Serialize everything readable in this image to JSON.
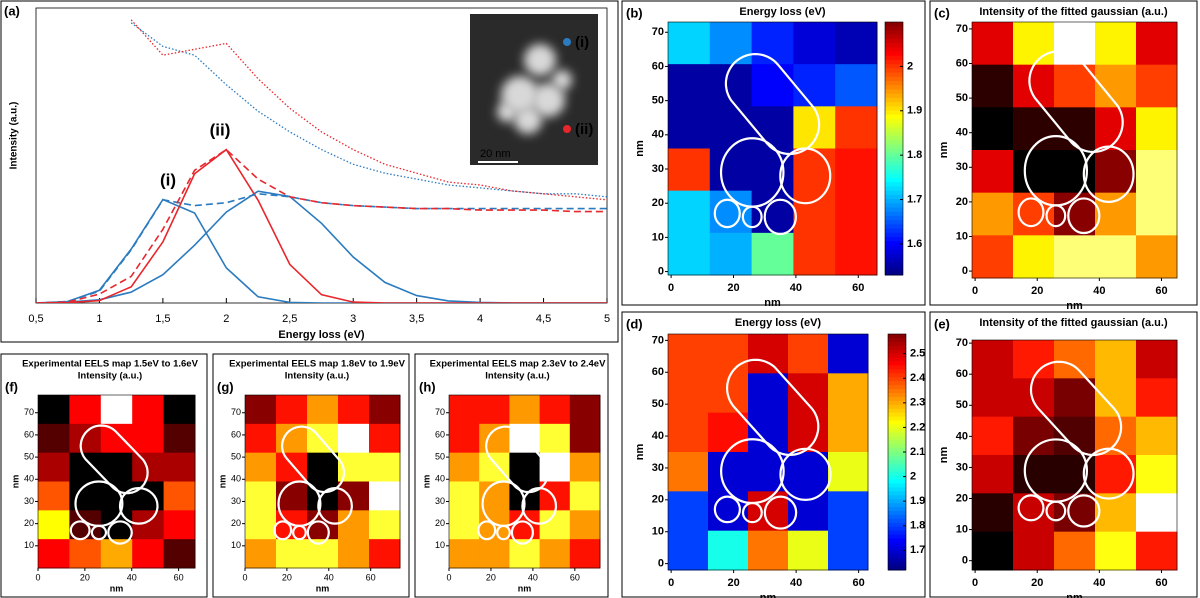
{
  "chart_data": [
    {
      "type": "line",
      "panel_label": "(a)",
      "xlabel": "Energy loss (eV)",
      "ylabel": "Intensity (a.u.)",
      "xlim": [
        0.5,
        5
      ],
      "ylim": [
        0,
        100
      ],
      "xticks": [
        {
          "value": 0.5,
          "label": "0,5"
        },
        1,
        {
          "value": 1.5,
          "label": "1,5"
        },
        2,
        {
          "value": 2.5,
          "label": "2,5"
        },
        3,
        {
          "value": 3.5,
          "label": "3,5"
        },
        4,
        {
          "value": 4.5,
          "label": "4,5"
        },
        5
      ],
      "x": [
        0.5,
        0.75,
        1,
        1.25,
        1.5,
        1.75,
        2,
        2.25,
        2.5,
        2.75,
        3,
        3.25,
        3.5,
        3.75,
        4,
        4.25,
        4.5,
        4.75,
        5
      ],
      "series": [
        {
          "color": "#2b7bbf",
          "style": "solid",
          "values": [
            0,
            0.5,
            4.3,
            18.3,
            35.1,
            30.5,
            11.9,
            2.1,
            0.2,
            0,
            0,
            0,
            0,
            0,
            0,
            0,
            0,
            0,
            0
          ]
        },
        {
          "color": "#2b7bbf",
          "style": "solid",
          "values": [
            0,
            0.3,
            1.1,
            3.7,
            9.6,
            19.6,
            30.8,
            37.9,
            36.1,
            27,
            15.6,
            7,
            2.5,
            0.7,
            0.2,
            0,
            0,
            0,
            0
          ]
        },
        {
          "color": "#e8262b",
          "style": "solid",
          "values": [
            0,
            0.1,
            0.8,
            5.5,
            20.7,
            43.8,
            52,
            34.8,
            13.1,
            2.8,
            0.3,
            0,
            0,
            0,
            0,
            0,
            0,
            0,
            0
          ]
        },
        {
          "color": "#2b7bbf",
          "style": "dashed",
          "values": [
            0,
            0.5,
            4,
            18,
            35,
            33,
            34,
            37,
            36,
            34,
            33,
            32.5,
            32,
            32,
            32,
            32,
            32,
            32,
            32
          ]
        },
        {
          "color": "#e8262b",
          "style": "dashed",
          "values": [
            0,
            0.3,
            3,
            9,
            25,
            45,
            52,
            42,
            36,
            34,
            33,
            32.5,
            32,
            32,
            31.5,
            31.5,
            31.5,
            31,
            31
          ]
        },
        {
          "color": "#2b7bbf",
          "style": "dotted",
          "values": [
            null,
            null,
            null,
            95,
            87,
            84,
            74,
            65,
            58,
            52,
            47,
            44,
            42,
            40,
            39,
            38,
            37,
            37,
            36
          ]
        },
        {
          "color": "#e8262b",
          "style": "dotted",
          "values": [
            null,
            null,
            null,
            96,
            84,
            86,
            88,
            76,
            66,
            58,
            52,
            47,
            44,
            41,
            40,
            38,
            37,
            36,
            35
          ]
        }
      ],
      "annotations": [
        {
          "text": "(i)",
          "color": "#2b7bbf"
        },
        {
          "text": "(ii)",
          "color": "#e8262b"
        }
      ],
      "inset": {
        "labels": [
          {
            "text": "(i)",
            "color": "#2b7bbf"
          },
          {
            "text": "(ii)",
            "color": "#e8262b"
          }
        ],
        "scale_bar": "20 nm"
      }
    },
    {
      "type": "heatmap",
      "panel_label": "(b)",
      "title": "Energy loss (eV)",
      "xlabel": "nm",
      "ylabel": "nm",
      "colormap": "jet",
      "xlim": [
        -1,
        66
      ],
      "ylim": [
        -1,
        73
      ],
      "xticks": [
        0,
        20,
        40,
        60
      ],
      "yticks": [
        0,
        10,
        20,
        30,
        40,
        50,
        60,
        70
      ],
      "z": [
        [
          1.72,
          1.68,
          1.62,
          1.58,
          1.56
        ],
        [
          1.55,
          1.55,
          1.6,
          1.62,
          1.65
        ],
        [
          1.55,
          1.55,
          1.55,
          1.9,
          2.0
        ],
        [
          2.0,
          1.55,
          1.55,
          2.0,
          2.02
        ],
        [
          1.72,
          1.68,
          1.55,
          2.0,
          2.02
        ],
        [
          1.72,
          1.7,
          1.8,
          2.0,
          2.02
        ]
      ],
      "colorbar": {
        "lim": [
          1.53,
          2.1
        ],
        "ticks": [
          1.6,
          1.7,
          1.8,
          1.9,
          2
        ]
      }
    },
    {
      "type": "heatmap",
      "panel_label": "(c)",
      "title": "Intensity of the fitted gaussian (a.u.)",
      "xlabel": "nm",
      "ylabel": "nm",
      "colormap": "hot",
      "xlim": [
        -1,
        65
      ],
      "ylim": [
        -2,
        72
      ],
      "xticks": [
        0,
        20,
        40,
        60
      ],
      "yticks": [
        0,
        10,
        20,
        30,
        40,
        50,
        60,
        70
      ],
      "z": [
        [
          0.3,
          0.6,
          0.8,
          0.6,
          0.3
        ],
        [
          0.1,
          0.3,
          0.4,
          0.5,
          0.4
        ],
        [
          0.05,
          0.1,
          0.1,
          0.3,
          0.6
        ],
        [
          0.3,
          0.05,
          0.05,
          0.2,
          0.7
        ],
        [
          0.5,
          0.4,
          0.2,
          0.5,
          0.7
        ],
        [
          0.4,
          0.6,
          0.7,
          0.7,
          0.5
        ]
      ]
    },
    {
      "type": "heatmap",
      "panel_label": "(d)",
      "title": "Energy loss (eV)",
      "xlabel": "nm",
      "ylabel": "nm",
      "colormap": "jet",
      "xlim": [
        -1,
        63
      ],
      "ylim": [
        -2,
        72
      ],
      "xticks": [
        0,
        20,
        40,
        60
      ],
      "yticks": [
        0,
        10,
        20,
        30,
        40,
        50,
        60,
        70
      ],
      "z": [
        [
          2.4,
          2.4,
          2.5,
          2.4,
          1.7
        ],
        [
          2.4,
          2.4,
          1.7,
          2.5,
          2.3
        ],
        [
          2.4,
          2.45,
          1.7,
          2.5,
          2.3
        ],
        [
          2.35,
          1.7,
          1.7,
          1.7,
          2.2
        ],
        [
          1.8,
          1.7,
          2.5,
          1.7,
          1.8
        ],
        [
          1.8,
          2.0,
          2.35,
          2.2,
          1.8
        ]
      ],
      "colorbar": {
        "lim": [
          1.62,
          2.58
        ],
        "ticks": [
          1.7,
          1.8,
          1.9,
          2,
          2.1,
          2.2,
          2.3,
          2.4,
          2.5
        ]
      }
    },
    {
      "type": "heatmap",
      "panel_label": "(e)",
      "title": "Intensity of the fitted gaussian (a.u.)",
      "xlabel": "nm",
      "ylabel": "nm",
      "colormap": "hot",
      "xlim": [
        -1,
        65
      ],
      "ylim": [
        -3,
        71
      ],
      "xticks": [
        0,
        20,
        40,
        60
      ],
      "yticks": [
        0,
        10,
        20,
        30,
        40,
        50,
        60,
        70
      ],
      "z": [
        [
          0.3,
          0.4,
          0.5,
          0.6,
          0.3
        ],
        [
          0.3,
          0.3,
          0.2,
          0.6,
          0.4
        ],
        [
          0.4,
          0.2,
          0.15,
          0.5,
          0.6
        ],
        [
          0.3,
          0.1,
          0.1,
          0.4,
          0.7
        ],
        [
          0.1,
          0.3,
          0.2,
          0.6,
          0.9
        ],
        [
          0.05,
          0.3,
          0.5,
          0.7,
          0.4
        ]
      ]
    },
    {
      "type": "heatmap",
      "panel_label": "(f)",
      "title": "Experimental EELS map 1.5eV to 1.6eV",
      "subtitle": "Intensity (a.u.)",
      "xlabel": "nm",
      "ylabel": "nm",
      "colormap": "hot",
      "xlim": [
        0,
        67
      ],
      "ylim": [
        0,
        78
      ],
      "xticks": [
        0,
        20,
        40,
        60
      ],
      "yticks": [
        10,
        20,
        30,
        40,
        50,
        60,
        70
      ],
      "z": [
        [
          0.1,
          0.4,
          0.9,
          0.4,
          0.1
        ],
        [
          0.2,
          0.3,
          0.4,
          0.4,
          0.2
        ],
        [
          0.3,
          0.1,
          0.1,
          0.3,
          0.3
        ],
        [
          0.5,
          0.1,
          0.1,
          0.1,
          0.5
        ],
        [
          0.7,
          0.2,
          0.1,
          0.3,
          0.4
        ],
        [
          0.4,
          0.5,
          0.6,
          0.4,
          0.2
        ]
      ]
    },
    {
      "type": "heatmap",
      "panel_label": "(g)",
      "title": "Experimental EELS map 1.8eV to 1.9eV",
      "subtitle": "Intensity (a.u.)",
      "xlabel": "nm",
      "ylabel": "nm",
      "colormap": "hot",
      "xlim": [
        0,
        74
      ],
      "ylim": [
        0,
        78
      ],
      "xticks": [
        0,
        20,
        40,
        60
      ],
      "yticks": [
        10,
        20,
        30,
        40,
        50,
        60,
        70
      ],
      "z": [
        [
          0.2,
          0.3,
          0.4,
          0.3,
          0.2
        ],
        [
          0.3,
          0.4,
          0.5,
          0.6,
          0.3
        ],
        [
          0.4,
          0.3,
          0.1,
          0.5,
          0.5
        ],
        [
          0.5,
          0.2,
          0.1,
          0.2,
          0.6
        ],
        [
          0.5,
          0.3,
          0.2,
          0.4,
          0.5
        ],
        [
          0.4,
          0.5,
          0.5,
          0.4,
          0.3
        ]
      ]
    },
    {
      "type": "heatmap",
      "panel_label": "(h)",
      "title": "Experimental EELS map 2.3eV to 2.4eV",
      "subtitle": "Intensity (a.u.)",
      "xlabel": "nm",
      "ylabel": "nm",
      "colormap": "hot",
      "xlim": [
        0,
        72
      ],
      "ylim": [
        0,
        78
      ],
      "xticks": [
        0,
        20,
        40,
        60
      ],
      "yticks": [
        10,
        20,
        30,
        40,
        50,
        60,
        70
      ],
      "z": [
        [
          0.3,
          0.3,
          0.4,
          0.3,
          0.2
        ],
        [
          0.3,
          0.4,
          0.6,
          0.5,
          0.2
        ],
        [
          0.4,
          0.5,
          0.1,
          0.6,
          0.4
        ],
        [
          0.5,
          0.4,
          0.1,
          0.3,
          0.5
        ],
        [
          0.5,
          0.4,
          0.3,
          0.5,
          0.4
        ],
        [
          0.4,
          0.4,
          0.5,
          0.4,
          0.3
        ]
      ]
    }
  ]
}
